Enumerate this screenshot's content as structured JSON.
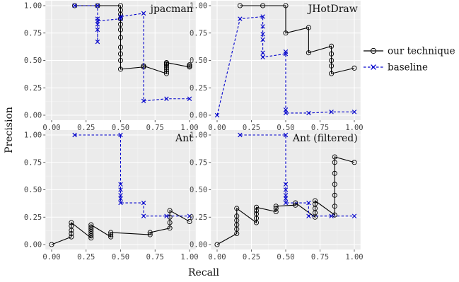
{
  "figure": {
    "xlabel": "Recall",
    "ylabel": "Precision",
    "legend": {
      "placement": "right",
      "entries": [
        {
          "name": "our technique",
          "color": "#000000",
          "marker": "circle",
          "line": "solid"
        },
        {
          "name": "baseline",
          "color": "#0000cc",
          "marker": "cross",
          "line": "dashed"
        }
      ]
    }
  },
  "chart_data": [
    {
      "type": "line",
      "title": "jpacman",
      "xlabel": "Recall",
      "ylabel": "Precision",
      "xlim": [
        0,
        1
      ],
      "ylim": [
        0,
        1
      ],
      "x_ticks": [
        "0.00",
        "0.25",
        "0.50",
        "0.75",
        "1.00"
      ],
      "y_ticks": [
        "0.00",
        "0.25",
        "0.50",
        "0.75",
        "1.00"
      ],
      "grid": true,
      "series": [
        {
          "name": "our technique",
          "points": [
            [
              0.167,
              1.0
            ],
            [
              0.333,
              1.0
            ],
            [
              0.5,
              1.0
            ],
            [
              0.5,
              0.96
            ],
            [
              0.5,
              0.92
            ],
            [
              0.5,
              0.88
            ],
            [
              0.5,
              0.83
            ],
            [
              0.5,
              0.78
            ],
            [
              0.5,
              0.71
            ],
            [
              0.5,
              0.62
            ],
            [
              0.5,
              0.56
            ],
            [
              0.5,
              0.5
            ],
            [
              0.5,
              0.42
            ],
            [
              0.667,
              0.44
            ],
            [
              0.667,
              0.45
            ],
            [
              0.833,
              0.38
            ],
            [
              0.833,
              0.4
            ],
            [
              0.833,
              0.42
            ],
            [
              0.833,
              0.44
            ],
            [
              0.833,
              0.46
            ],
            [
              0.833,
              0.47
            ],
            [
              0.833,
              0.48
            ],
            [
              1.0,
              0.44
            ],
            [
              1.0,
              0.45
            ],
            [
              1.0,
              0.46
            ]
          ]
        },
        {
          "name": "baseline",
          "points": [
            [
              0.167,
              1.0
            ],
            [
              0.333,
              1.0
            ],
            [
              0.333,
              0.88
            ],
            [
              0.333,
              0.83
            ],
            [
              0.333,
              0.78
            ],
            [
              0.333,
              0.67
            ],
            [
              0.333,
              0.86
            ],
            [
              0.5,
              0.88
            ],
            [
              0.5,
              0.9
            ],
            [
              0.667,
              0.93
            ],
            [
              0.667,
              0.13
            ],
            [
              0.833,
              0.15
            ],
            [
              1.0,
              0.15
            ]
          ]
        }
      ]
    },
    {
      "type": "line",
      "title": "JHotDraw",
      "xlabel": "Recall",
      "ylabel": "Precision",
      "xlim": [
        0,
        1
      ],
      "ylim": [
        0,
        1
      ],
      "x_ticks": [
        "0.00",
        "0.25",
        "0.50",
        "0.75",
        "1.00"
      ],
      "y_ticks": [
        "0.00",
        "0.25",
        "0.50",
        "0.75",
        "1.00"
      ],
      "grid": true,
      "series": [
        {
          "name": "our technique",
          "points": [
            [
              0.167,
              1.0
            ],
            [
              0.333,
              1.0
            ],
            [
              0.5,
              1.0
            ],
            [
              0.5,
              0.75
            ],
            [
              0.667,
              0.8
            ],
            [
              0.667,
              0.57
            ],
            [
              0.833,
              0.63
            ],
            [
              0.833,
              0.56
            ],
            [
              0.833,
              0.5
            ],
            [
              0.833,
              0.45
            ],
            [
              0.833,
              0.38
            ],
            [
              1.0,
              0.43
            ]
          ]
        },
        {
          "name": "baseline",
          "points": [
            [
              0.0,
              0.0
            ],
            [
              0.167,
              0.88
            ],
            [
              0.333,
              0.9
            ],
            [
              0.333,
              0.81
            ],
            [
              0.333,
              0.74
            ],
            [
              0.333,
              0.69
            ],
            [
              0.333,
              0.57
            ],
            [
              0.333,
              0.53
            ],
            [
              0.5,
              0.56
            ],
            [
              0.5,
              0.58
            ],
            [
              0.5,
              0.05
            ],
            [
              0.5,
              0.02
            ],
            [
              0.667,
              0.02
            ],
            [
              0.833,
              0.03
            ],
            [
              1.0,
              0.03
            ]
          ]
        }
      ]
    },
    {
      "type": "line",
      "title": "Ant",
      "xlabel": "Recall",
      "ylabel": "Precision",
      "xlim": [
        0,
        1
      ],
      "ylim": [
        0,
        1
      ],
      "x_ticks": [
        "0.00",
        "0.25",
        "0.50",
        "0.75",
        "1.00"
      ],
      "y_ticks": [
        "0.00",
        "0.25",
        "0.50",
        "0.75",
        "1.00"
      ],
      "grid": true,
      "series": [
        {
          "name": "our technique",
          "points": [
            [
              0.0,
              0.0
            ],
            [
              0.143,
              0.07
            ],
            [
              0.143,
              0.1
            ],
            [
              0.143,
              0.13
            ],
            [
              0.143,
              0.17
            ],
            [
              0.143,
              0.2
            ],
            [
              0.286,
              0.06
            ],
            [
              0.286,
              0.08
            ],
            [
              0.286,
              0.1
            ],
            [
              0.286,
              0.12
            ],
            [
              0.286,
              0.14
            ],
            [
              0.286,
              0.16
            ],
            [
              0.286,
              0.18
            ],
            [
              0.429,
              0.07
            ],
            [
              0.429,
              0.09
            ],
            [
              0.429,
              0.11
            ],
            [
              0.714,
              0.09
            ],
            [
              0.714,
              0.11
            ],
            [
              0.857,
              0.15
            ],
            [
              0.857,
              0.2
            ],
            [
              0.857,
              0.25
            ],
            [
              0.857,
              0.31
            ],
            [
              1.0,
              0.21
            ]
          ]
        },
        {
          "name": "baseline",
          "points": [
            [
              0.167,
              1.0
            ],
            [
              0.5,
              1.0
            ],
            [
              0.5,
              0.55
            ],
            [
              0.5,
              0.5
            ],
            [
              0.5,
              0.45
            ],
            [
              0.5,
              0.42
            ],
            [
              0.5,
              0.38
            ],
            [
              0.667,
              0.38
            ],
            [
              0.667,
              0.26
            ],
            [
              0.833,
              0.26
            ],
            [
              1.0,
              0.26
            ]
          ]
        }
      ]
    },
    {
      "type": "line",
      "title": "Ant (filtered)",
      "xlabel": "Recall",
      "ylabel": "Precision",
      "xlim": [
        0,
        1
      ],
      "ylim": [
        0,
        1
      ],
      "x_ticks": [
        "0.00",
        "0.25",
        "0.50",
        "0.75",
        "1.00"
      ],
      "y_ticks": [
        "0.00",
        "0.25",
        "0.50",
        "0.75",
        "1.00"
      ],
      "grid": true,
      "series": [
        {
          "name": "our technique",
          "points": [
            [
              0.0,
              0.0
            ],
            [
              0.143,
              0.1
            ],
            [
              0.143,
              0.14
            ],
            [
              0.143,
              0.18
            ],
            [
              0.143,
              0.22
            ],
            [
              0.143,
              0.26
            ],
            [
              0.143,
              0.33
            ],
            [
              0.286,
              0.2
            ],
            [
              0.286,
              0.24
            ],
            [
              0.286,
              0.28
            ],
            [
              0.286,
              0.31
            ],
            [
              0.286,
              0.34
            ],
            [
              0.429,
              0.3
            ],
            [
              0.429,
              0.33
            ],
            [
              0.429,
              0.35
            ],
            [
              0.571,
              0.36
            ],
            [
              0.571,
              0.38
            ],
            [
              0.714,
              0.25
            ],
            [
              0.714,
              0.29
            ],
            [
              0.714,
              0.33
            ],
            [
              0.714,
              0.37
            ],
            [
              0.714,
              0.4
            ],
            [
              0.857,
              0.27
            ],
            [
              0.857,
              0.35
            ],
            [
              0.857,
              0.45
            ],
            [
              0.857,
              0.55
            ],
            [
              0.857,
              0.65
            ],
            [
              0.857,
              0.75
            ],
            [
              0.857,
              0.8
            ],
            [
              1.0,
              0.75
            ]
          ]
        },
        {
          "name": "baseline",
          "points": [
            [
              0.167,
              1.0
            ],
            [
              0.5,
              1.0
            ],
            [
              0.5,
              0.55
            ],
            [
              0.5,
              0.5
            ],
            [
              0.5,
              0.45
            ],
            [
              0.5,
              0.42
            ],
            [
              0.5,
              0.38
            ],
            [
              0.667,
              0.38
            ],
            [
              0.667,
              0.26
            ],
            [
              0.833,
              0.26
            ],
            [
              1.0,
              0.26
            ]
          ]
        }
      ]
    }
  ]
}
